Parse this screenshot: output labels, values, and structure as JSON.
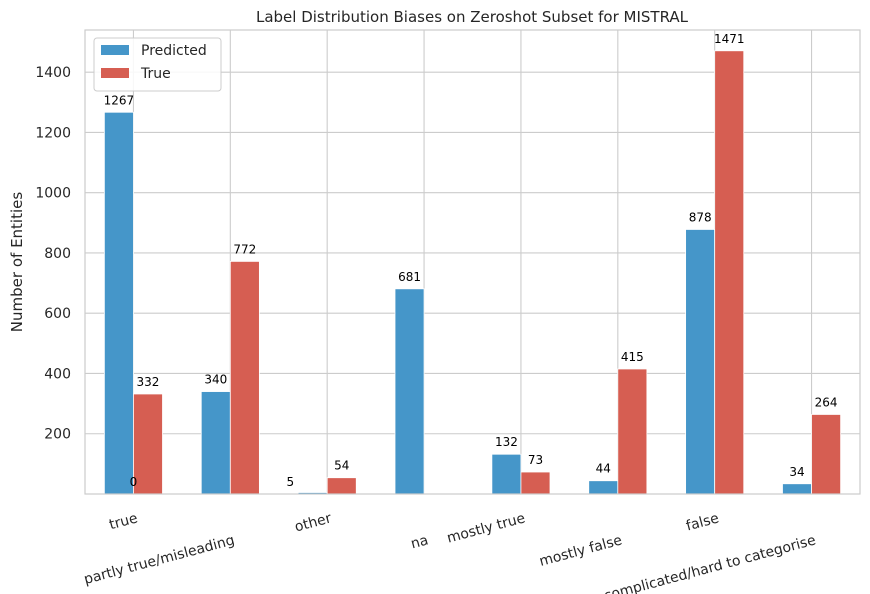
{
  "chart_data": {
    "type": "bar",
    "title": "Label Distribution Biases on Zeroshot Subset for MISTRAL",
    "xlabel": "",
    "ylabel": "Number of Entities",
    "categories": [
      "true",
      "partly true/misleading",
      "other",
      "na",
      "mostly true",
      "mostly false",
      "false",
      "complicated/hard to categorise"
    ],
    "series": [
      {
        "name": "Predicted",
        "color": "#4596c9",
        "values": [
          1267,
          340,
          5,
          681,
          132,
          44,
          878,
          34
        ]
      },
      {
        "name": "True",
        "color": "#d65e52",
        "values": [
          332,
          772,
          54,
          0,
          73,
          415,
          1471,
          264
        ]
      }
    ],
    "data_labels": {
      "Predicted": [
        "1267",
        "340",
        "5",
        "681",
        "132",
        "44",
        "878",
        "34"
      ],
      "True": [
        "332",
        "772",
        "54",
        "",
        "73",
        "415",
        "1471",
        "264"
      ]
    },
    "extra_labels": [
      {
        "text": "0",
        "category": "true"
      }
    ],
    "ylim": [
      0,
      1540
    ],
    "yticks": [
      200,
      400,
      600,
      800,
      1000,
      1200,
      1400
    ],
    "grid": true,
    "legend": "top-left"
  }
}
